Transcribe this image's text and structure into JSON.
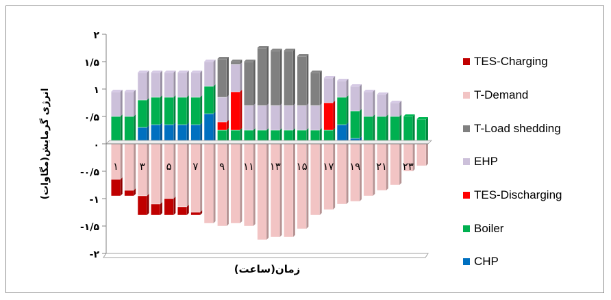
{
  "chart_data": {
    "type": "bar",
    "stacked": true,
    "xlabel": "زمان(ساعت)",
    "ylabel": "انرژی گرمایش(مگاوات)",
    "ylim": [
      -2,
      2
    ],
    "yticks": [
      2,
      1.5,
      1,
      0.5,
      0,
      -0.5,
      -1,
      -1.5,
      -2
    ],
    "ytick_labels": [
      "۲",
      "۱/۵",
      "۱",
      "۰/۵",
      "۰",
      "-۰/۵",
      "-۱",
      "-۱/۵",
      "-۲"
    ],
    "x": [
      1,
      2,
      3,
      4,
      5,
      6,
      7,
      8,
      9,
      10,
      11,
      12,
      13,
      14,
      15,
      16,
      17,
      18,
      19,
      20,
      21,
      22,
      23,
      24
    ],
    "xtick_labels": [
      "۱",
      "۳",
      "۵",
      "۷",
      "۹",
      "۱۱",
      "۱۳",
      "۱۵",
      "۱۷",
      "۱۹",
      "۲۱",
      "۲۳"
    ],
    "xtick_hours": [
      1,
      3,
      5,
      7,
      9,
      11,
      13,
      15,
      17,
      19,
      21,
      23
    ],
    "grid": false,
    "legend_position": "right",
    "series": [
      {
        "name": "CHP",
        "color": "#0070c0",
        "values": [
          0,
          0,
          0.3,
          0.35,
          0.35,
          0.35,
          0.35,
          0.55,
          0,
          0,
          0,
          0,
          0,
          0,
          0,
          0,
          0,
          0.35,
          0.1,
          0,
          0,
          0,
          0,
          0
        ]
      },
      {
        "name": "Boiler",
        "color": "#00b050",
        "values": [
          0.5,
          0.5,
          0.5,
          0.5,
          0.5,
          0.5,
          0.5,
          0.5,
          0.25,
          0.25,
          0.25,
          0.25,
          0.25,
          0.25,
          0.25,
          0.25,
          0.25,
          0.5,
          0.5,
          0.5,
          0.5,
          0.5,
          0.5,
          0.45
        ]
      },
      {
        "name": "TES-Discharging",
        "color": "#ff0000",
        "values": [
          0,
          0,
          0,
          0,
          0,
          0,
          0,
          0,
          0.15,
          0.7,
          0,
          0,
          0,
          0,
          0,
          0,
          0.5,
          0,
          0,
          0,
          0,
          0,
          0,
          0
        ]
      },
      {
        "name": "EHP",
        "color": "#ccc0da",
        "values": [
          0.45,
          0.45,
          0.5,
          0.45,
          0.45,
          0.45,
          0.45,
          0.45,
          0.45,
          0.5,
          0.45,
          0.45,
          0.45,
          0.45,
          0.45,
          0.45,
          0.45,
          0.3,
          0.45,
          0.45,
          0.4,
          0.25,
          0,
          0
        ]
      },
      {
        "name": "T-Load shedding",
        "color": "#808080",
        "values": [
          0,
          0,
          0,
          0,
          0,
          0,
          0,
          0,
          0.7,
          0.05,
          0.8,
          1.05,
          1.0,
          1.0,
          0.9,
          0.6,
          0,
          0,
          0,
          0,
          0,
          0,
          0,
          0
        ]
      },
      {
        "name": "T-Demand",
        "color": "#f2c4c4",
        "values": [
          -0.65,
          -0.85,
          -0.95,
          -1.1,
          -1.0,
          -1.15,
          -1.25,
          -1.45,
          -1.5,
          -1.45,
          -1.5,
          -1.75,
          -1.7,
          -1.7,
          -1.55,
          -1.3,
          -1.2,
          -1.1,
          -1.05,
          -0.95,
          -0.85,
          -0.75,
          -0.5,
          -0.4
        ]
      },
      {
        "name": "TES-Charging",
        "color": "#c00000",
        "values": [
          -0.3,
          -0.1,
          -0.35,
          -0.2,
          -0.3,
          -0.15,
          -0.05,
          0,
          0,
          0,
          0,
          0,
          0,
          0,
          0,
          0,
          0,
          0,
          0,
          0,
          0,
          0,
          0,
          0
        ]
      }
    ]
  },
  "legend_order": [
    "TES-Charging",
    "T-Demand",
    "T-Load shedding",
    "EHP",
    "TES-Discharging",
    "Boiler",
    "CHP"
  ]
}
